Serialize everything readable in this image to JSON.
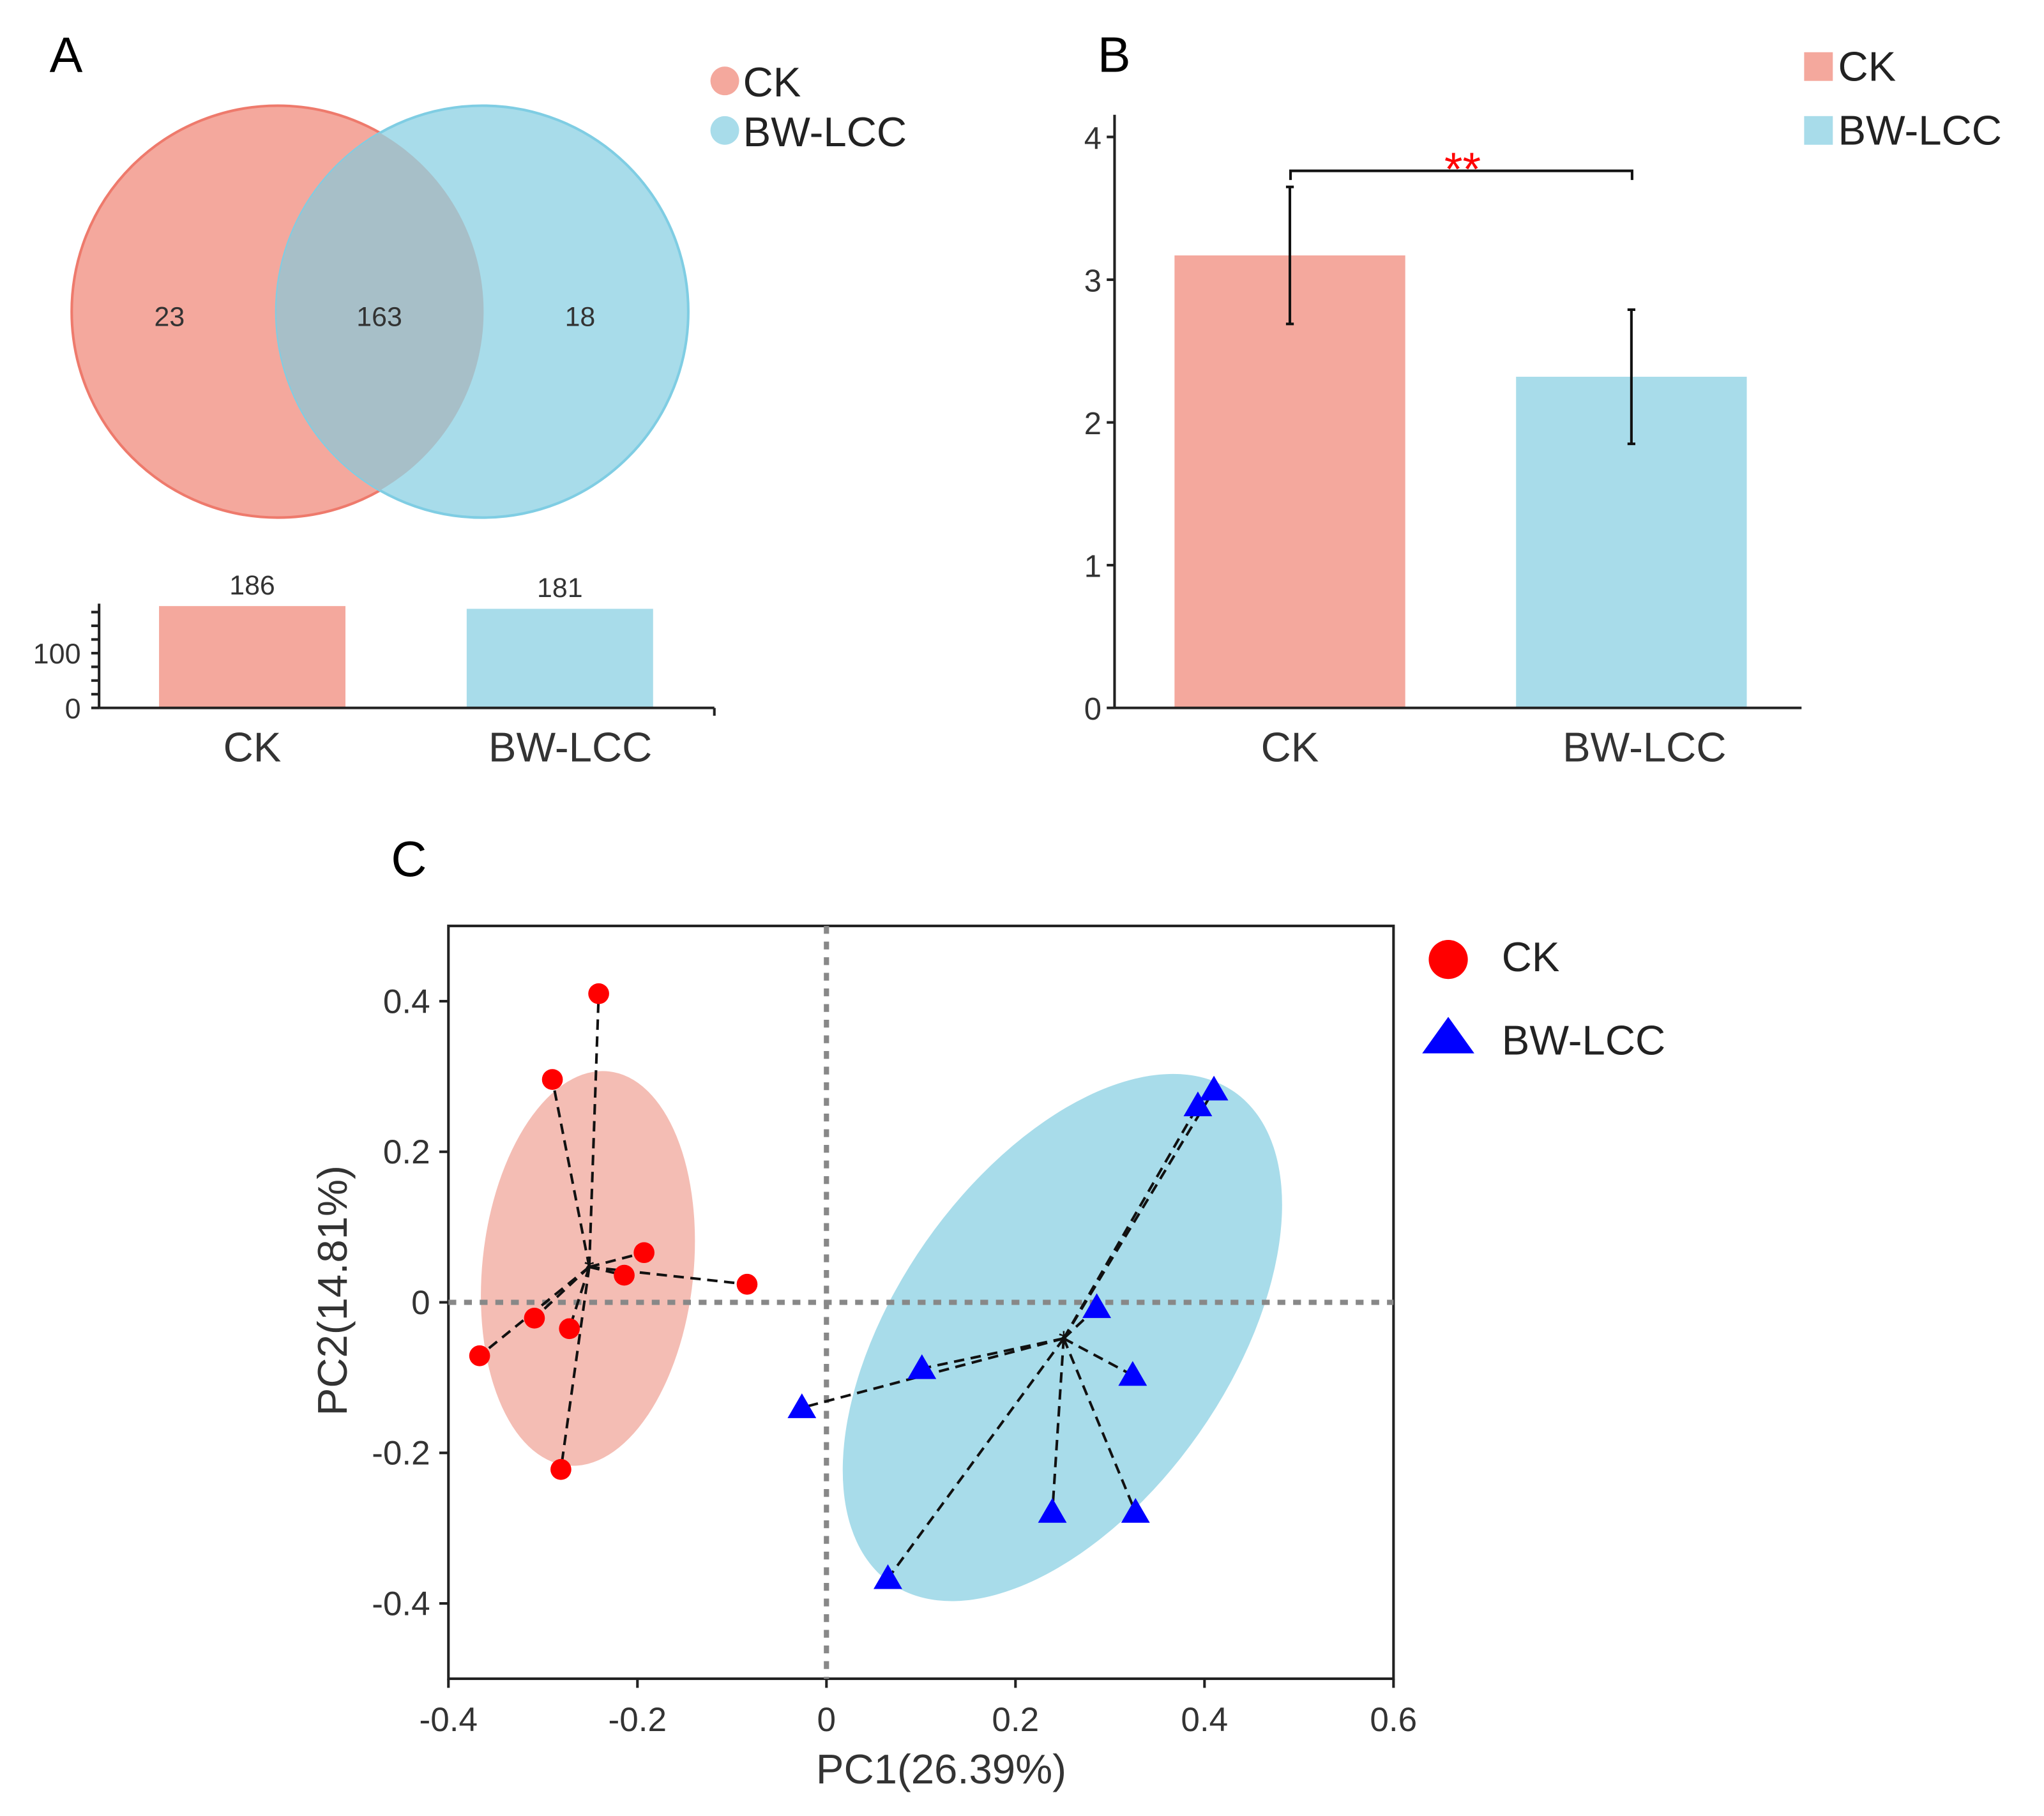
{
  "colors": {
    "ck": "#f4a89d",
    "bw": "#a8dcea",
    "ck_point": "#ff0000",
    "bw_point": "#0000ff",
    "sig": "#ff0000"
  },
  "chart_data": [
    {
      "panel": "A",
      "type": "venn",
      "legend": [
        "CK",
        "BW-LCC"
      ],
      "sets": [
        "CK",
        "BW-LCC"
      ],
      "only_ck": 23,
      "shared": 163,
      "only_bw": 18,
      "bar": {
        "type": "bar",
        "categories": [
          "CK",
          "BW-LCC"
        ],
        "values": [
          186,
          181
        ],
        "yticks": [
          "0",
          "100"
        ],
        "ylim": [
          0,
          190
        ]
      }
    },
    {
      "panel": "B",
      "type": "bar",
      "categories": [
        "CK",
        "BW-LCC"
      ],
      "values": [
        3.17,
        2.32
      ],
      "errors": [
        0.48,
        0.47
      ],
      "legend": [
        "CK",
        "BW-LCC"
      ],
      "significance": "**",
      "ylim": [
        0,
        4
      ],
      "yticks": [
        "0",
        "1",
        "2",
        "3",
        "4"
      ]
    },
    {
      "panel": "C",
      "type": "scatter",
      "xlabel": "PC1(26.39%)",
      "ylabel": "PC2(14.81%)",
      "xlim": [
        -0.4,
        0.6
      ],
      "ylim": [
        -0.5,
        0.5
      ],
      "xticks": [
        "-0.4",
        "-0.2",
        "0",
        "0.2",
        "0.4",
        "0.6"
      ],
      "yticks": [
        "-0.4",
        "-0.2",
        "0",
        "0.2",
        "0.4"
      ],
      "legend": [
        "CK",
        "BW-LCC"
      ],
      "series": [
        {
          "name": "CK",
          "marker": "circle",
          "centroid": [
            -0.251,
            0.047
          ],
          "points": [
            [
              -0.241,
              0.41
            ],
            [
              -0.29,
              0.296
            ],
            [
              -0.193,
              0.066
            ],
            [
              -0.214,
              0.036
            ],
            [
              -0.084,
              0.024
            ],
            [
              -0.309,
              -0.021
            ],
            [
              -0.272,
              -0.035
            ],
            [
              -0.367,
              -0.071
            ],
            [
              -0.281,
              -0.222
            ]
          ]
        },
        {
          "name": "BW-LCC",
          "marker": "triangle",
          "centroid": [
            0.251,
            -0.048
          ],
          "points": [
            [
              0.41,
              0.282
            ],
            [
              0.393,
              0.261
            ],
            [
              0.286,
              -0.007
            ],
            [
              0.101,
              -0.088
            ],
            [
              0.324,
              -0.097
            ],
            [
              -0.026,
              -0.14
            ],
            [
              0.239,
              -0.279
            ],
            [
              0.327,
              -0.279
            ],
            [
              0.065,
              -0.367
            ]
          ]
        }
      ]
    }
  ]
}
